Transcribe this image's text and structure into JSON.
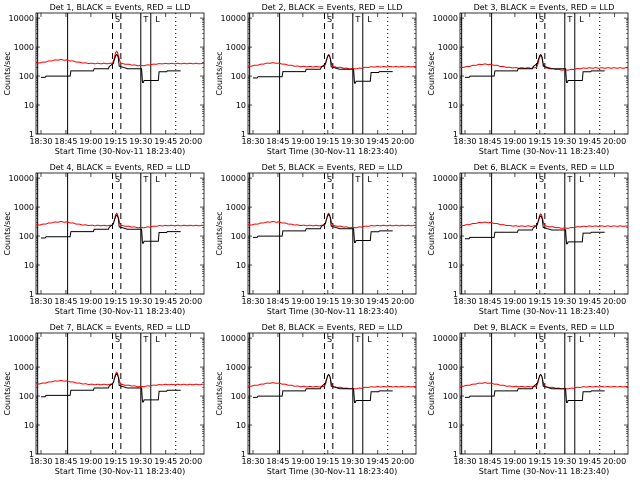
{
  "chart_data": {
    "type": "line",
    "layout": "3x3 grid of log-scale time-series panels",
    "x_ticks": [
      "18:30",
      "18:45",
      "19:00",
      "19:15",
      "19:30",
      "19:45",
      "20:00"
    ],
    "x_tick_minutes": [
      0,
      15,
      30,
      45,
      60,
      75,
      90
    ],
    "x_range_minutes": [
      -3,
      98
    ],
    "xlabel": "Start Time (30-Nov-11 18:23:40)",
    "ylabel": "Counts/sec",
    "y_scale": "log",
    "ylim": [
      1,
      15000
    ],
    "y_ticks": [
      "1",
      "10",
      "100",
      "1000",
      "10000"
    ],
    "y_tick_values": [
      1,
      10,
      100,
      1000,
      10000
    ],
    "markers": {
      "S": {
        "label": "S",
        "minute": 46
      },
      "T": {
        "label": "T",
        "minute": 63
      },
      "L": {
        "label": "L",
        "minute": 70
      }
    },
    "vlines": {
      "solid_minutes": [
        -2,
        16,
        60,
        66
      ],
      "dashed_minutes": [
        43,
        48
      ],
      "dotted_minutes": [
        81
      ]
    },
    "panels": [
      {
        "title": "Det 1, BLACK = Events, RED = LLD",
        "red_base": 270,
        "black_scale": 1.0
      },
      {
        "title": "Det 2, BLACK = Events, RED = LLD",
        "red_base": 210,
        "black_scale": 0.95
      },
      {
        "title": "Det 3, BLACK = Events, RED = LLD",
        "red_base": 190,
        "black_scale": 1.0
      },
      {
        "title": "Det 4, BLACK = Events, RED = LLD",
        "red_base": 230,
        "black_scale": 0.95
      },
      {
        "title": "Det 5, BLACK = Events, RED = LLD",
        "red_base": 230,
        "black_scale": 1.0
      },
      {
        "title": "Det 6, BLACK = Events, RED = LLD",
        "red_base": 220,
        "black_scale": 0.9
      },
      {
        "title": "Det 7, BLACK = Events, RED = LLD",
        "red_base": 250,
        "black_scale": 1.05
      },
      {
        "title": "Det 8, BLACK = Events, RED = LLD",
        "red_base": 210,
        "black_scale": 1.0
      },
      {
        "title": "Det 9, BLACK = Events, RED = LLD",
        "red_base": 210,
        "black_scale": 1.0
      }
    ],
    "series": [
      {
        "name": "Events",
        "color": "#000000"
      },
      {
        "name": "LLD",
        "color": "#ff0000"
      }
    ]
  }
}
